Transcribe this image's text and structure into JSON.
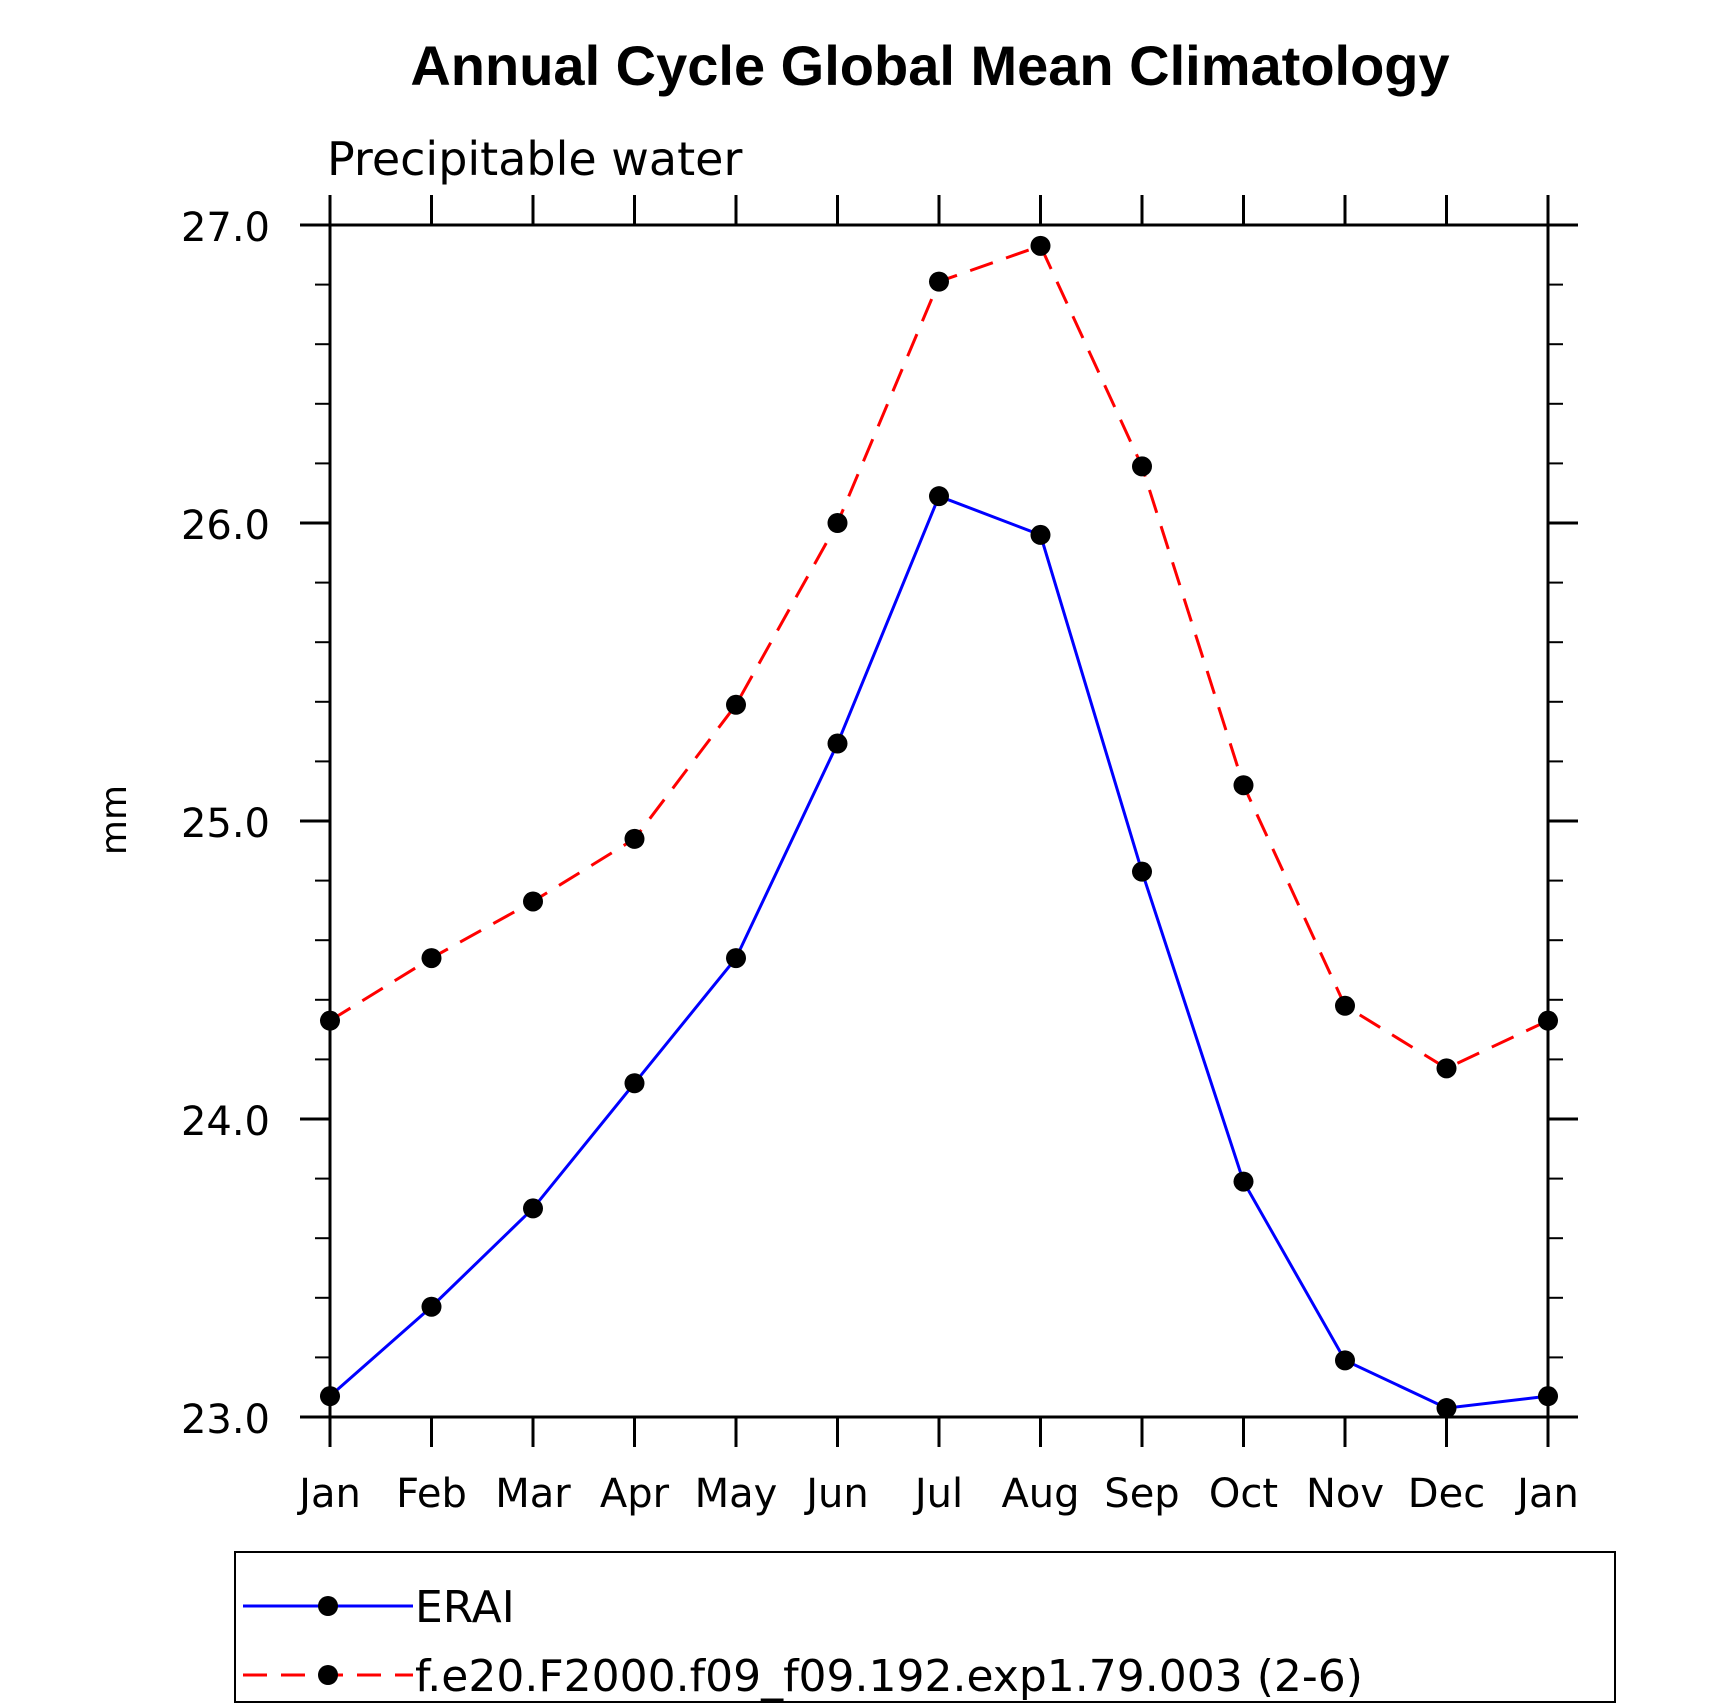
{
  "chart_data": {
    "type": "line",
    "title": "Annual Cycle Global Mean Climatology",
    "subtitle": "Precipitable water",
    "xlabel": "",
    "ylabel": "mm",
    "categories": [
      "Jan",
      "Feb",
      "Mar",
      "Apr",
      "May",
      "Jun",
      "Jul",
      "Aug",
      "Sep",
      "Oct",
      "Nov",
      "Dec",
      "Jan"
    ],
    "ylim": [
      23.0,
      27.0
    ],
    "yticks": [
      23.0,
      24.0,
      25.0,
      26.0,
      27.0
    ],
    "ytick_labels": [
      "23.0",
      "24.0",
      "25.0",
      "26.0",
      "27.0"
    ],
    "yminor_step": 0.2,
    "grid": false,
    "legend_position": "bottom",
    "series": [
      {
        "name": "ERAI",
        "color": "#0000ff",
        "dash": "solid",
        "marker": "filled-circle",
        "values": [
          23.07,
          23.37,
          23.7,
          24.12,
          24.54,
          25.26,
          26.09,
          25.96,
          24.83,
          23.79,
          23.19,
          23.03,
          23.07
        ]
      },
      {
        "name": "f.e20.F2000.f09_f09.192.exp1.79.003 (2-6)",
        "color": "#ff0000",
        "dash": "dashed",
        "marker": "filled-circle",
        "values": [
          24.33,
          24.54,
          24.73,
          24.94,
          25.39,
          26.0,
          26.81,
          26.93,
          26.19,
          25.12,
          24.38,
          24.17,
          24.33
        ]
      }
    ]
  }
}
